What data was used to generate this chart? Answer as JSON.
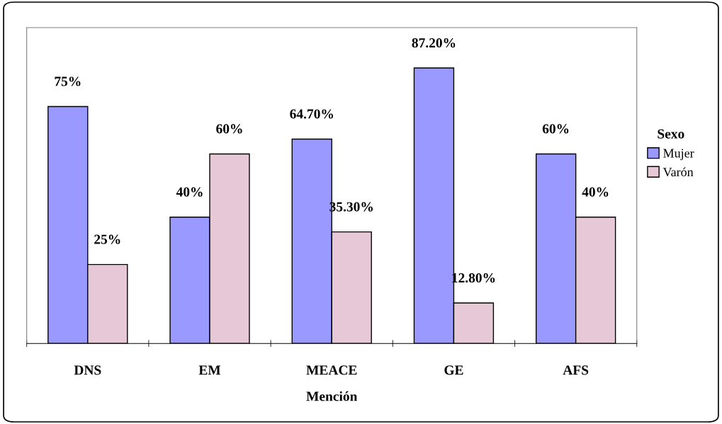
{
  "chart_data": {
    "type": "bar",
    "xlabel": "Mención",
    "legend_title": "Sexo",
    "legend": "right",
    "categories": [
      "DNS",
      "EM",
      "MEACE",
      "GE",
      "AFS"
    ],
    "series": [
      {
        "name": "Mujer",
        "color": "#9999ff",
        "values": [
          75,
          40,
          64.7,
          87.2,
          60
        ],
        "value_labels": [
          "75%",
          "40%",
          "64.70%",
          "87.20%",
          "60%"
        ]
      },
      {
        "name": "Varón",
        "color": "#e6c8d6",
        "values": [
          25,
          60,
          35.3,
          12.8,
          40
        ],
        "value_labels": [
          "25%",
          "60%",
          "35.30%",
          "12.80%",
          "40%"
        ]
      }
    ],
    "ylim": [
      0,
      100
    ],
    "tick_labels": "x",
    "grid": false
  }
}
